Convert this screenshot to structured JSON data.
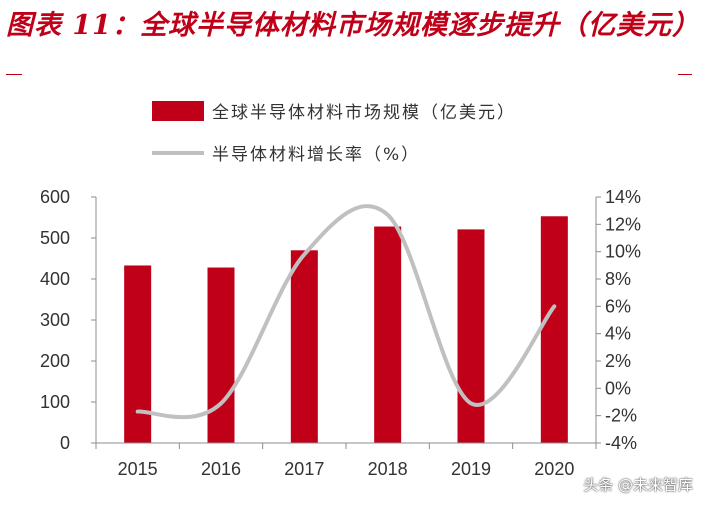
{
  "title": "图表 11：全球半导体材料市场规模逐步提升（亿美元）",
  "watermark": "头条 @未来智库",
  "colors": {
    "bar": "#c00019",
    "line": "#c0c0c0",
    "title": "#c00019"
  },
  "chart_data": {
    "type": "bar",
    "categories": [
      "2015",
      "2016",
      "2017",
      "2018",
      "2019",
      "2020"
    ],
    "series": [
      {
        "name": "全球半导体材料市场规模（亿美元）",
        "type": "bar",
        "axis": "left",
        "values": [
          433,
          428,
          470,
          528,
          521,
          553
        ]
      },
      {
        "name": "半导体材料增长率（%）",
        "type": "line",
        "axis": "right",
        "values": [
          -1.7,
          -1.1,
          9.8,
          12.7,
          -1.1,
          6.0
        ]
      }
    ],
    "y_left": {
      "min": 0,
      "max": 600,
      "ticks": [
        "0",
        "100",
        "200",
        "300",
        "400",
        "500",
        "600"
      ]
    },
    "y_right": {
      "min": -4,
      "max": 14,
      "ticks": [
        "-4%",
        "-2%",
        "0%",
        "2%",
        "4%",
        "6%",
        "8%",
        "10%",
        "12%",
        "14%"
      ]
    },
    "grid": false,
    "legend": "top"
  }
}
